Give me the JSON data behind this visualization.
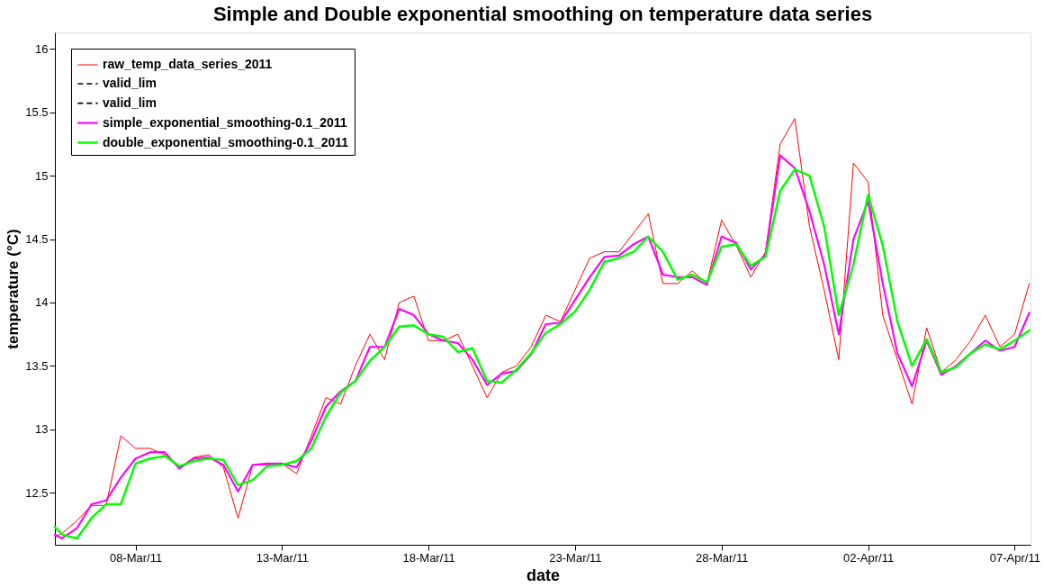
{
  "chart_data": {
    "type": "line",
    "title": "Simple and Double exponential smoothing on temperature data series",
    "xlabel": "date",
    "ylabel": "temperature (°C)",
    "x": [
      "2011-03-05T06:00",
      "2011-03-05T12:00",
      "2011-03-06T00:00",
      "2011-03-06T12:00",
      "2011-03-07T00:00",
      "2011-03-07T12:00",
      "2011-03-08T00:00",
      "2011-03-08T12:00",
      "2011-03-09T00:00",
      "2011-03-09T12:00",
      "2011-03-10T00:00",
      "2011-03-10T12:00",
      "2011-03-11T00:00",
      "2011-03-11T12:00",
      "2011-03-12T00:00",
      "2011-03-12T12:00",
      "2011-03-13T00:00",
      "2011-03-13T12:00",
      "2011-03-14T00:00",
      "2011-03-14T12:00",
      "2011-03-15T00:00",
      "2011-03-15T12:00",
      "2011-03-16T00:00",
      "2011-03-16T12:00",
      "2011-03-17T00:00",
      "2011-03-17T12:00",
      "2011-03-18T00:00",
      "2011-03-18T12:00",
      "2011-03-19T00:00",
      "2011-03-19T12:00",
      "2011-03-20T00:00",
      "2011-03-20T12:00",
      "2011-03-21T00:00",
      "2011-03-21T12:00",
      "2011-03-22T00:00",
      "2011-03-22T12:00",
      "2011-03-23T00:00",
      "2011-03-23T12:00",
      "2011-03-24T00:00",
      "2011-03-24T12:00",
      "2011-03-25T00:00",
      "2011-03-25T12:00",
      "2011-03-26T00:00",
      "2011-03-26T12:00",
      "2011-03-27T00:00",
      "2011-03-27T12:00",
      "2011-03-28T00:00",
      "2011-03-28T12:00",
      "2011-03-29T00:00",
      "2011-03-29T12:00",
      "2011-03-30T00:00",
      "2011-03-30T12:00",
      "2011-03-31T00:00",
      "2011-03-31T12:00",
      "2011-04-01T00:00",
      "2011-04-01T12:00",
      "2011-04-02T00:00",
      "2011-04-02T12:00",
      "2011-04-03T00:00",
      "2011-04-03T12:00",
      "2011-04-04T00:00",
      "2011-04-04T12:00",
      "2011-04-05T00:00",
      "2011-04-05T12:00",
      "2011-04-06T00:00",
      "2011-04-06T12:00",
      "2011-04-07T00:00",
      "2011-04-07T12:00"
    ],
    "series": [
      {
        "name": "raw_temp_data_series_2011",
        "color": "#ff0000",
        "values": [
          12.15,
          12.18,
          12.28,
          12.4,
          12.4,
          12.95,
          12.85,
          12.85,
          12.8,
          12.7,
          12.78,
          12.8,
          12.7,
          12.3,
          12.72,
          12.72,
          12.73,
          12.65,
          12.95,
          13.25,
          13.2,
          13.5,
          13.75,
          13.55,
          14.0,
          14.05,
          13.7,
          13.7,
          13.75,
          13.5,
          13.25,
          13.45,
          13.5,
          13.65,
          13.9,
          13.85,
          14.1,
          14.35,
          14.4,
          14.4,
          14.55,
          14.7,
          14.15,
          14.15,
          14.25,
          14.15,
          14.65,
          14.45,
          14.2,
          14.4,
          15.25,
          15.45,
          14.6,
          14.1,
          13.55,
          15.1,
          14.95,
          13.9,
          13.55,
          13.2,
          13.8,
          13.45,
          13.55,
          13.7,
          13.9,
          13.65,
          13.75,
          14.15
        ]
      },
      {
        "name": "valid_lim",
        "color": "#000000",
        "line_style": "dashed",
        "values": [
          null,
          null,
          null,
          null,
          null,
          null,
          null,
          null,
          null,
          null,
          null,
          null,
          null,
          null,
          null,
          null,
          null,
          null,
          null,
          null,
          null,
          null,
          null,
          null,
          null,
          null,
          null,
          null,
          null,
          null,
          null,
          null,
          null,
          null,
          null,
          null,
          null,
          null,
          null,
          null,
          null,
          null,
          null,
          null,
          null,
          null,
          null,
          null,
          null,
          null,
          null,
          null,
          null,
          null,
          null,
          null,
          null,
          null,
          null,
          null,
          null,
          null,
          null,
          null,
          null,
          null,
          null,
          null
        ]
      },
      {
        "name": "valid_lim",
        "color": "#000000",
        "line_style": "dashed",
        "values": [
          null,
          null,
          null,
          null,
          null,
          null,
          null,
          null,
          null,
          null,
          null,
          null,
          null,
          null,
          null,
          null,
          null,
          null,
          null,
          null,
          null,
          null,
          null,
          null,
          null,
          null,
          null,
          null,
          null,
          null,
          null,
          null,
          null,
          null,
          null,
          null,
          null,
          null,
          null,
          null,
          null,
          null,
          null,
          null,
          null,
          null,
          null,
          null,
          null,
          null,
          null,
          null,
          null,
          null,
          null,
          null,
          null,
          null,
          null,
          null,
          null,
          null,
          null,
          null,
          null,
          null,
          null,
          null
        ]
      },
      {
        "name": "simple_exponential_smoothing-0.1_2011",
        "color": "#ff00ff",
        "values": [
          12.17,
          12.14,
          12.22,
          12.41,
          12.44,
          12.62,
          12.77,
          12.82,
          12.82,
          12.69,
          12.77,
          12.78,
          12.72,
          12.51,
          12.72,
          12.73,
          12.73,
          12.7,
          12.91,
          13.18,
          13.3,
          13.38,
          13.65,
          13.65,
          13.95,
          13.9,
          13.75,
          13.7,
          13.68,
          13.55,
          13.35,
          13.44,
          13.46,
          13.59,
          13.83,
          13.84,
          14.02,
          14.2,
          14.36,
          14.37,
          14.46,
          14.52,
          14.22,
          14.2,
          14.2,
          14.14,
          14.52,
          14.47,
          14.26,
          14.38,
          15.16,
          15.06,
          14.72,
          14.3,
          13.75,
          14.5,
          14.8,
          14.15,
          13.6,
          13.34,
          13.7,
          13.43,
          13.5,
          13.6,
          13.7,
          13.62,
          13.65,
          13.92
        ]
      },
      {
        "name": "double_exponential_smoothing-0.1_2011",
        "color": "#00ff00",
        "values": [
          12.23,
          12.17,
          12.14,
          12.3,
          12.41,
          12.41,
          12.73,
          12.77,
          12.79,
          12.71,
          12.75,
          12.77,
          12.76,
          12.56,
          12.6,
          12.71,
          12.72,
          12.75,
          12.85,
          13.1,
          13.29,
          13.38,
          13.54,
          13.65,
          13.81,
          13.82,
          13.75,
          13.73,
          13.61,
          13.64,
          13.38,
          13.37,
          13.47,
          13.6,
          13.76,
          13.83,
          13.93,
          14.1,
          14.32,
          14.35,
          14.4,
          14.52,
          14.4,
          14.18,
          14.22,
          14.16,
          14.44,
          14.46,
          14.29,
          14.36,
          14.88,
          15.05,
          15.0,
          14.6,
          13.9,
          14.3,
          14.85,
          14.45,
          13.85,
          13.5,
          13.71,
          13.45,
          13.49,
          13.6,
          13.67,
          13.63,
          13.7,
          13.78
        ]
      }
    ],
    "xlim": [
      "2011-03-05T06:00",
      "2011-04-07T13:00"
    ],
    "xticks": [
      {
        "value": "2011-03-08",
        "label": "08-Mar/11"
      },
      {
        "value": "2011-03-13",
        "label": "13-Mar/11"
      },
      {
        "value": "2011-03-18",
        "label": "18-Mar/11"
      },
      {
        "value": "2011-03-23",
        "label": "23-Mar/11"
      },
      {
        "value": "2011-03-28",
        "label": "28-Mar/11"
      },
      {
        "value": "2011-04-02",
        "label": "02-Apr/11"
      },
      {
        "value": "2011-04-07",
        "label": "07-Apr/11"
      }
    ],
    "ylim": [
      12.09,
      16.13
    ],
    "yticks": [
      12.5,
      13,
      13.5,
      14,
      14.5,
      15,
      15.5,
      16
    ],
    "legend": "top left",
    "grid": false
  }
}
